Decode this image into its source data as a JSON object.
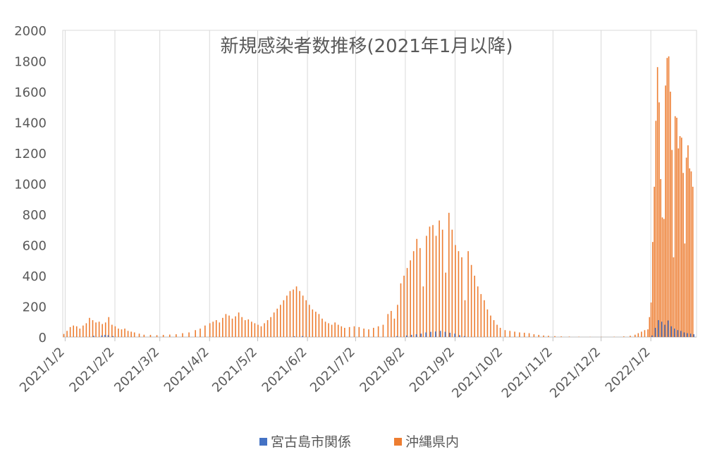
{
  "chart_data": {
    "type": "bar",
    "title": "新規感染者数推移(2021年1月以降)",
    "xlabel": "",
    "ylabel": "",
    "ylim": [
      0,
      2000
    ],
    "yticks": [
      0,
      200,
      400,
      600,
      800,
      1000,
      1200,
      1400,
      1600,
      1800,
      2000
    ],
    "x_start": "2021-01-01",
    "x_end": "2022-01-30",
    "xtick_labels": [
      "2021/1/2",
      "2021/2/2",
      "2021/3/2",
      "2021/4/2",
      "2021/5/2",
      "2021/6/2",
      "2021/7/2",
      "2021/8/2",
      "2021/9/2",
      "2021/10/2",
      "2021/11/2",
      "2021/12/2",
      "2022/1/2"
    ],
    "xtick_dates": [
      "2021-01-02",
      "2021-02-02",
      "2021-03-02",
      "2021-04-02",
      "2021-05-02",
      "2021-06-02",
      "2021-07-02",
      "2021-08-02",
      "2021-09-02",
      "2021-10-02",
      "2021-11-02",
      "2021-12-02",
      "2022-01-02"
    ],
    "grid": "vertical",
    "legend": "bottom",
    "series": [
      {
        "name": "宮古島市関係",
        "color": "#4472C4",
        "points": [
          [
            "2021-01-20",
            8
          ],
          [
            "2021-01-25",
            10
          ],
          [
            "2021-01-27",
            14
          ],
          [
            "2021-01-29",
            12
          ],
          [
            "2021-02-01",
            6
          ],
          [
            "2021-05-25",
            5
          ],
          [
            "2021-05-30",
            6
          ],
          [
            "2021-07-28",
            6
          ],
          [
            "2021-08-03",
            10
          ],
          [
            "2021-08-06",
            14
          ],
          [
            "2021-08-09",
            18
          ],
          [
            "2021-08-12",
            22
          ],
          [
            "2021-08-15",
            30
          ],
          [
            "2021-08-18",
            34
          ],
          [
            "2021-08-21",
            36
          ],
          [
            "2021-08-24",
            40
          ],
          [
            "2021-08-27",
            34
          ],
          [
            "2021-08-30",
            28
          ],
          [
            "2021-09-02",
            22
          ],
          [
            "2021-09-05",
            12
          ],
          [
            "2021-09-08",
            6
          ],
          [
            "2022-01-03",
            10
          ],
          [
            "2022-01-05",
            60
          ],
          [
            "2022-01-07",
            110
          ],
          [
            "2022-01-09",
            100
          ],
          [
            "2022-01-11",
            80
          ],
          [
            "2022-01-13",
            108
          ],
          [
            "2022-01-15",
            70
          ],
          [
            "2022-01-17",
            55
          ],
          [
            "2022-01-19",
            45
          ],
          [
            "2022-01-21",
            40
          ],
          [
            "2022-01-23",
            30
          ],
          [
            "2022-01-25",
            25
          ],
          [
            "2022-01-27",
            22
          ],
          [
            "2022-01-29",
            18
          ]
        ]
      },
      {
        "name": "沖縄県内",
        "color": "#ED7D31",
        "points": [
          [
            "2021-01-01",
            20
          ],
          [
            "2021-01-03",
            40
          ],
          [
            "2021-01-05",
            65
          ],
          [
            "2021-01-07",
            75
          ],
          [
            "2021-01-09",
            70
          ],
          [
            "2021-01-11",
            55
          ],
          [
            "2021-01-13",
            75
          ],
          [
            "2021-01-15",
            90
          ],
          [
            "2021-01-17",
            125
          ],
          [
            "2021-01-19",
            110
          ],
          [
            "2021-01-21",
            95
          ],
          [
            "2021-01-23",
            100
          ],
          [
            "2021-01-25",
            85
          ],
          [
            "2021-01-27",
            95
          ],
          [
            "2021-01-29",
            130
          ],
          [
            "2021-01-31",
            80
          ],
          [
            "2021-02-02",
            70
          ],
          [
            "2021-02-04",
            55
          ],
          [
            "2021-02-06",
            50
          ],
          [
            "2021-02-08",
            55
          ],
          [
            "2021-02-10",
            40
          ],
          [
            "2021-02-12",
            35
          ],
          [
            "2021-02-14",
            30
          ],
          [
            "2021-02-17",
            22
          ],
          [
            "2021-02-20",
            15
          ],
          [
            "2021-02-24",
            14
          ],
          [
            "2021-02-28",
            12
          ],
          [
            "2021-03-04",
            14
          ],
          [
            "2021-03-08",
            16
          ],
          [
            "2021-03-12",
            18
          ],
          [
            "2021-03-16",
            25
          ],
          [
            "2021-03-20",
            30
          ],
          [
            "2021-03-24",
            45
          ],
          [
            "2021-03-27",
            55
          ],
          [
            "2021-03-30",
            75
          ],
          [
            "2021-04-02",
            90
          ],
          [
            "2021-04-04",
            100
          ],
          [
            "2021-04-06",
            110
          ],
          [
            "2021-04-08",
            95
          ],
          [
            "2021-04-10",
            125
          ],
          [
            "2021-04-12",
            150
          ],
          [
            "2021-04-14",
            140
          ],
          [
            "2021-04-16",
            120
          ],
          [
            "2021-04-18",
            135
          ],
          [
            "2021-04-20",
            160
          ],
          [
            "2021-04-22",
            130
          ],
          [
            "2021-04-24",
            110
          ],
          [
            "2021-04-26",
            115
          ],
          [
            "2021-04-28",
            100
          ],
          [
            "2021-04-30",
            90
          ],
          [
            "2021-05-02",
            80
          ],
          [
            "2021-05-04",
            70
          ],
          [
            "2021-05-06",
            90
          ],
          [
            "2021-05-08",
            110
          ],
          [
            "2021-05-10",
            130
          ],
          [
            "2021-05-12",
            160
          ],
          [
            "2021-05-14",
            185
          ],
          [
            "2021-05-16",
            210
          ],
          [
            "2021-05-18",
            240
          ],
          [
            "2021-05-20",
            270
          ],
          [
            "2021-05-22",
            300
          ],
          [
            "2021-05-24",
            310
          ],
          [
            "2021-05-26",
            330
          ],
          [
            "2021-05-28",
            300
          ],
          [
            "2021-05-30",
            270
          ],
          [
            "2021-06-01",
            240
          ],
          [
            "2021-06-03",
            210
          ],
          [
            "2021-06-05",
            180
          ],
          [
            "2021-06-07",
            165
          ],
          [
            "2021-06-09",
            150
          ],
          [
            "2021-06-11",
            120
          ],
          [
            "2021-06-13",
            100
          ],
          [
            "2021-06-15",
            90
          ],
          [
            "2021-06-17",
            80
          ],
          [
            "2021-06-19",
            95
          ],
          [
            "2021-06-21",
            80
          ],
          [
            "2021-06-23",
            70
          ],
          [
            "2021-06-25",
            60
          ],
          [
            "2021-06-28",
            65
          ],
          [
            "2021-07-01",
            70
          ],
          [
            "2021-07-04",
            65
          ],
          [
            "2021-07-07",
            55
          ],
          [
            "2021-07-10",
            50
          ],
          [
            "2021-07-13",
            60
          ],
          [
            "2021-07-16",
            70
          ],
          [
            "2021-07-19",
            80
          ],
          [
            "2021-07-22",
            150
          ],
          [
            "2021-07-24",
            170
          ],
          [
            "2021-07-26",
            120
          ],
          [
            "2021-07-28",
            210
          ],
          [
            "2021-07-30",
            350
          ],
          [
            "2021-08-01",
            400
          ],
          [
            "2021-08-03",
            450
          ],
          [
            "2021-08-05",
            500
          ],
          [
            "2021-08-07",
            560
          ],
          [
            "2021-08-09",
            640
          ],
          [
            "2021-08-11",
            580
          ],
          [
            "2021-08-13",
            330
          ],
          [
            "2021-08-15",
            660
          ],
          [
            "2021-08-17",
            720
          ],
          [
            "2021-08-19",
            730
          ],
          [
            "2021-08-21",
            660
          ],
          [
            "2021-08-23",
            760
          ],
          [
            "2021-08-25",
            700
          ],
          [
            "2021-08-27",
            420
          ],
          [
            "2021-08-29",
            810
          ],
          [
            "2021-08-31",
            700
          ],
          [
            "2021-09-02",
            600
          ],
          [
            "2021-09-04",
            560
          ],
          [
            "2021-09-06",
            520
          ],
          [
            "2021-09-08",
            240
          ],
          [
            "2021-09-10",
            560
          ],
          [
            "2021-09-12",
            470
          ],
          [
            "2021-09-14",
            400
          ],
          [
            "2021-09-16",
            330
          ],
          [
            "2021-09-18",
            280
          ],
          [
            "2021-09-20",
            240
          ],
          [
            "2021-09-22",
            180
          ],
          [
            "2021-09-24",
            140
          ],
          [
            "2021-09-26",
            110
          ],
          [
            "2021-09-28",
            80
          ],
          [
            "2021-09-30",
            60
          ],
          [
            "2021-10-03",
            45
          ],
          [
            "2021-10-06",
            40
          ],
          [
            "2021-10-09",
            35
          ],
          [
            "2021-10-12",
            30
          ],
          [
            "2021-10-15",
            28
          ],
          [
            "2021-10-18",
            25
          ],
          [
            "2021-10-21",
            18
          ],
          [
            "2021-10-24",
            14
          ],
          [
            "2021-10-27",
            10
          ],
          [
            "2021-10-30",
            8
          ],
          [
            "2021-11-03",
            6
          ],
          [
            "2021-11-07",
            4
          ],
          [
            "2021-11-12",
            3
          ],
          [
            "2021-11-18",
            2
          ],
          [
            "2021-11-25",
            1
          ],
          [
            "2021-12-02",
            1
          ],
          [
            "2021-12-10",
            2
          ],
          [
            "2021-12-16",
            4
          ],
          [
            "2021-12-20",
            8
          ],
          [
            "2021-12-23",
            15
          ],
          [
            "2021-12-25",
            25
          ],
          [
            "2021-12-27",
            35
          ],
          [
            "2021-12-29",
            45
          ],
          [
            "2021-12-31",
            50
          ],
          [
            "2022-01-01",
            130
          ],
          [
            "2022-01-02",
            225
          ],
          [
            "2022-01-03",
            620
          ],
          [
            "2022-01-04",
            980
          ],
          [
            "2022-01-05",
            1410
          ],
          [
            "2022-01-06",
            1760
          ],
          [
            "2022-01-07",
            1530
          ],
          [
            "2022-01-08",
            1030
          ],
          [
            "2022-01-09",
            780
          ],
          [
            "2022-01-10",
            770
          ],
          [
            "2022-01-11",
            1640
          ],
          [
            "2022-01-12",
            1820
          ],
          [
            "2022-01-13",
            1830
          ],
          [
            "2022-01-14",
            1600
          ],
          [
            "2022-01-15",
            1220
          ],
          [
            "2022-01-16",
            520
          ],
          [
            "2022-01-17",
            1440
          ],
          [
            "2022-01-18",
            1430
          ],
          [
            "2022-01-19",
            1230
          ],
          [
            "2022-01-20",
            1310
          ],
          [
            "2022-01-21",
            1300
          ],
          [
            "2022-01-22",
            1070
          ],
          [
            "2022-01-23",
            610
          ],
          [
            "2022-01-24",
            1170
          ],
          [
            "2022-01-25",
            1250
          ],
          [
            "2022-01-26",
            1100
          ],
          [
            "2022-01-27",
            1080
          ],
          [
            "2022-01-28",
            980
          ]
        ]
      }
    ]
  }
}
